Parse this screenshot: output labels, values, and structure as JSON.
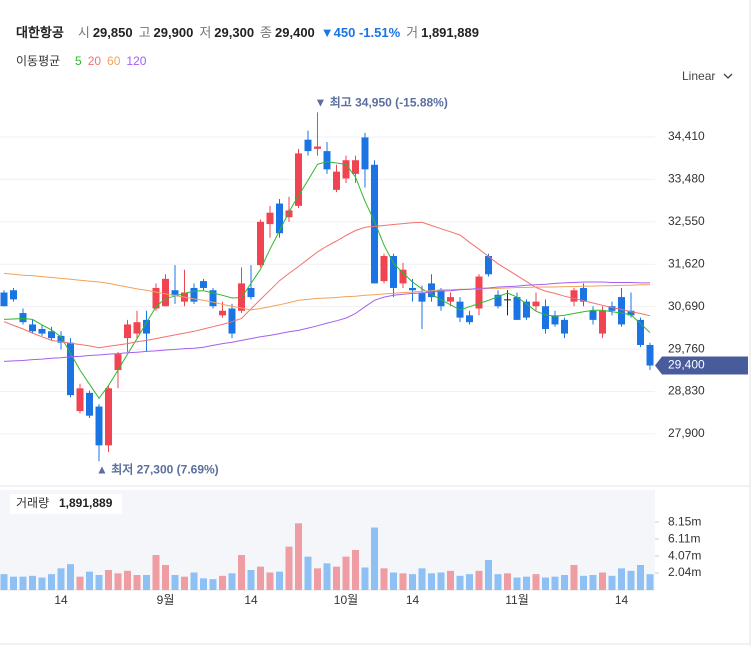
{
  "header": {
    "name": "대한항공",
    "items": [
      {
        "label": "시",
        "value": "29,850"
      },
      {
        "label": "고",
        "value": "29,900"
      },
      {
        "label": "저",
        "value": "29,300"
      },
      {
        "label": "종",
        "value": "29,400"
      },
      {
        "label": "거",
        "value": "1,891,889"
      }
    ],
    "change": "▼450 -1.51%"
  },
  "chart_data": [
    {
      "type": "candlestick",
      "scale_label": "Linear",
      "ma_title": "이동평균",
      "up_color": "#f04452",
      "down_color": "#1b74e4",
      "flat_color": "#222222",
      "categories": [
        null,
        null,
        null,
        null,
        null,
        null,
        "14",
        null,
        null,
        null,
        null,
        null,
        null,
        null,
        null,
        null,
        null,
        "9월",
        null,
        null,
        null,
        null,
        null,
        null,
        null,
        null,
        "14",
        null,
        null,
        null,
        null,
        null,
        null,
        null,
        null,
        null,
        "10월",
        null,
        null,
        null,
        null,
        null,
        null,
        "14",
        null,
        null,
        null,
        null,
        null,
        null,
        null,
        null,
        null,
        null,
        "11월",
        null,
        null,
        null,
        null,
        null,
        null,
        null,
        null,
        null,
        null,
        "14",
        null,
        null,
        null
      ],
      "open": [
        31000,
        31050,
        30550,
        30300,
        30200,
        30150,
        30050,
        29900,
        28400,
        28800,
        28500,
        27650,
        29300,
        30000,
        30100,
        30400,
        30650,
        30700,
        31050,
        30800,
        31100,
        31250,
        31050,
        30500,
        30650,
        30600,
        31100,
        31600,
        32500,
        32950,
        32650,
        32900,
        34350,
        34150,
        34100,
        33250,
        33500,
        33600,
        34400,
        33800,
        31250,
        31800,
        31200,
        31100,
        31000,
        31200,
        31050,
        30800,
        30800,
        30500,
        30650,
        31800,
        30950,
        30850,
        30900,
        30800,
        30700,
        30700,
        30500,
        30400,
        30800,
        31100,
        30600,
        30100,
        30700,
        30900,
        30600,
        30400,
        29850
      ],
      "high": [
        31050,
        31100,
        30650,
        30400,
        30300,
        30250,
        30150,
        30000,
        29000,
        28850,
        28550,
        28950,
        29700,
        30400,
        30600,
        30600,
        31200,
        31400,
        31600,
        31500,
        31200,
        31300,
        31100,
        30800,
        30750,
        31550,
        31600,
        32600,
        32900,
        33050,
        33100,
        34150,
        34550,
        34950,
        34300,
        33800,
        34000,
        34000,
        34500,
        33900,
        31850,
        31850,
        31650,
        31300,
        31150,
        31400,
        31100,
        31000,
        30900,
        30600,
        31400,
        31850,
        31050,
        31050,
        31000,
        30850,
        31000,
        30850,
        30600,
        30450,
        31100,
        31200,
        30700,
        30700,
        30800,
        31100,
        31000,
        30450,
        29900
      ],
      "low": [
        30700,
        30800,
        30300,
        30100,
        30050,
        29950,
        29750,
        28700,
        28350,
        28250,
        27300,
        27500,
        28900,
        29700,
        30000,
        29700,
        30600,
        30700,
        30750,
        30700,
        30750,
        31050,
        30650,
        30450,
        30000,
        30550,
        30850,
        31550,
        32200,
        32200,
        32550,
        32850,
        34000,
        34000,
        33600,
        33200,
        33400,
        33400,
        33300,
        31200,
        31200,
        30900,
        31100,
        30800,
        30200,
        30800,
        30600,
        30700,
        30350,
        30300,
        30500,
        31350,
        30650,
        30500,
        30400,
        30400,
        30600,
        30100,
        30250,
        30000,
        30700,
        30700,
        30300,
        30000,
        30500,
        30250,
        30450,
        29800,
        29300
      ],
      "close": [
        30700,
        30850,
        30350,
        30150,
        30100,
        30000,
        29900,
        28750,
        28900,
        28300,
        27650,
        28900,
        29650,
        30300,
        30350,
        30100,
        31100,
        31300,
        30950,
        31000,
        30800,
        31100,
        30700,
        30600,
        30100,
        31200,
        30900,
        32550,
        32750,
        32300,
        32800,
        34050,
        34100,
        34200,
        33700,
        33650,
        33900,
        33900,
        33700,
        31200,
        31800,
        31100,
        31500,
        31050,
        30800,
        30900,
        30700,
        30900,
        30450,
        30350,
        31350,
        31400,
        30700,
        30850,
        30400,
        30450,
        30800,
        30200,
        30300,
        30100,
        31050,
        30800,
        30400,
        30600,
        30600,
        30300,
        30500,
        29850,
        29400
      ],
      "series": [
        {
          "name": "5",
          "color": "#2eb82e",
          "values": [
            30410,
            30420,
            30430,
            30410,
            30290,
            30180,
            30030,
            29670,
            29300,
            28990,
            28680,
            28960,
            29300,
            29650,
            29990,
            30340,
            30690,
            30870,
            30920,
            30980,
            31030,
            31040,
            30990,
            30940,
            30880,
            30890,
            31200,
            31510,
            31950,
            32350,
            32770,
            33120,
            33460,
            33810,
            33870,
            33840,
            33810,
            33530,
            33000,
            32560,
            32040,
            31640,
            31430,
            31230,
            31080,
            30960,
            30840,
            30730,
            30620,
            30690,
            30760,
            30830,
            30910,
            30990,
            30900,
            30750,
            30590,
            30510,
            30480,
            30500,
            30540,
            30580,
            30610,
            30610,
            30580,
            30550,
            30510,
            30320,
            30120
          ]
        },
        {
          "name": "20",
          "color": "#f0736f",
          "values": [
            30360,
            30280,
            30200,
            30110,
            30030,
            29950,
            29920,
            29890,
            29860,
            29830,
            29790,
            29820,
            29850,
            29880,
            29920,
            29950,
            29990,
            30030,
            30070,
            30110,
            30150,
            30200,
            30250,
            30300,
            30360,
            30430,
            30640,
            30850,
            31050,
            31260,
            31420,
            31570,
            31730,
            31890,
            32020,
            32130,
            32250,
            32360,
            32430,
            32450,
            32470,
            32490,
            32510,
            32530,
            32540,
            32470,
            32400,
            32330,
            32260,
            32100,
            31950,
            31790,
            31630,
            31500,
            31370,
            31240,
            31110,
            31030,
            30980,
            30920,
            30870,
            30820,
            30770,
            30720,
            30670,
            30630,
            30580,
            30540,
            30490
          ]
        },
        {
          "name": "60",
          "color": "#f2a25c",
          "values": [
            31420,
            31400,
            31380,
            31370,
            31350,
            31330,
            31310,
            31290,
            31270,
            31250,
            31230,
            31200,
            31160,
            31120,
            31080,
            31050,
            31010,
            30970,
            30930,
            30900,
            30860,
            30830,
            30790,
            30740,
            30700,
            30660,
            30620,
            30650,
            30690,
            30730,
            30780,
            30830,
            30850,
            30870,
            30880,
            30890,
            30910,
            30920,
            30940,
            30950,
            30970,
            30980,
            31000,
            31010,
            31030,
            31040,
            31060,
            31060,
            31070,
            31070,
            31080,
            31090,
            31090,
            31100,
            31110,
            31110,
            31120,
            31120,
            31120,
            31130,
            31130,
            31140,
            31140,
            31150,
            31150,
            31160,
            31160,
            31170,
            31170
          ]
        },
        {
          "name": "120",
          "color": "#a55ff0",
          "values": [
            29490,
            29500,
            29510,
            29530,
            29540,
            29560,
            29570,
            29590,
            29600,
            29620,
            29630,
            29650,
            29660,
            29680,
            29690,
            29710,
            29720,
            29740,
            29750,
            29770,
            29780,
            29800,
            29840,
            29880,
            29910,
            29950,
            29990,
            30030,
            30060,
            30100,
            30140,
            30170,
            30220,
            30270,
            30330,
            30380,
            30440,
            30540,
            30690,
            30830,
            30900,
            30940,
            30960,
            30980,
            30990,
            31010,
            31030,
            31040,
            31060,
            31070,
            31090,
            31100,
            31120,
            31130,
            31140,
            31160,
            31170,
            31180,
            31200,
            31210,
            31220,
            31230,
            31230,
            31230,
            31220,
            31220,
            31220,
            31210,
            31210
          ]
        }
      ],
      "annotations": [
        {
          "label": "▼ 최고 34,950 (-15.88%)",
          "value": 34950
        },
        {
          "label": "▲ 최저 27,300 (7.69%)",
          "value": 27300
        }
      ],
      "price_tag": {
        "value": 29400,
        "label": "29,400"
      },
      "ylim": [
        26890,
        35330
      ],
      "yticks": [
        {
          "value": 27900,
          "label": "27,900"
        },
        {
          "value": 28830,
          "label": "28,830"
        },
        {
          "value": 29760,
          "label": "29,760"
        },
        {
          "value": 30690,
          "label": "30,690"
        },
        {
          "value": 31620,
          "label": "31,620"
        },
        {
          "value": 32550,
          "label": "32,550"
        },
        {
          "value": 33480,
          "label": "33,480"
        },
        {
          "value": 34410,
          "label": "34,410"
        }
      ],
      "grid": true
    },
    {
      "type": "bar",
      "title": "거래량",
      "title_value": "1,891,889",
      "up_color": "#ef9ca3",
      "down_color": "#8fc0f4",
      "values": [
        1900000,
        1600000,
        1600000,
        1700000,
        1500000,
        1900000,
        2600000,
        3100000,
        1600000,
        2200000,
        1800000,
        2400000,
        2000000,
        2300000,
        1800000,
        1800000,
        4200000,
        3000000,
        1800000,
        1600000,
        2100000,
        1400000,
        1300000,
        1700000,
        2000000,
        4200000,
        2400000,
        2800000,
        2100000,
        2200000,
        5200000,
        8000000,
        4000000,
        2600000,
        3200000,
        2800000,
        4000000,
        4800000,
        2700000,
        7500000,
        2600000,
        2100000,
        2000000,
        1900000,
        2600000,
        2000000,
        2100000,
        2300000,
        1700000,
        1900000,
        2300000,
        3600000,
        1900000,
        2000000,
        1500000,
        1600000,
        1900000,
        1500000,
        1600000,
        1800000,
        3000000,
        1700000,
        1800000,
        2100000,
        1700000,
        2600000,
        2300000,
        3000000,
        1891889
      ],
      "ylim": [
        0,
        12000000
      ],
      "yticks": [
        {
          "value": 2040000,
          "label": "2.04m"
        },
        {
          "value": 4070000,
          "label": "4.07m"
        },
        {
          "value": 6110000,
          "label": "6.11m"
        },
        {
          "value": 8150000,
          "label": "8.15m"
        }
      ]
    }
  ]
}
